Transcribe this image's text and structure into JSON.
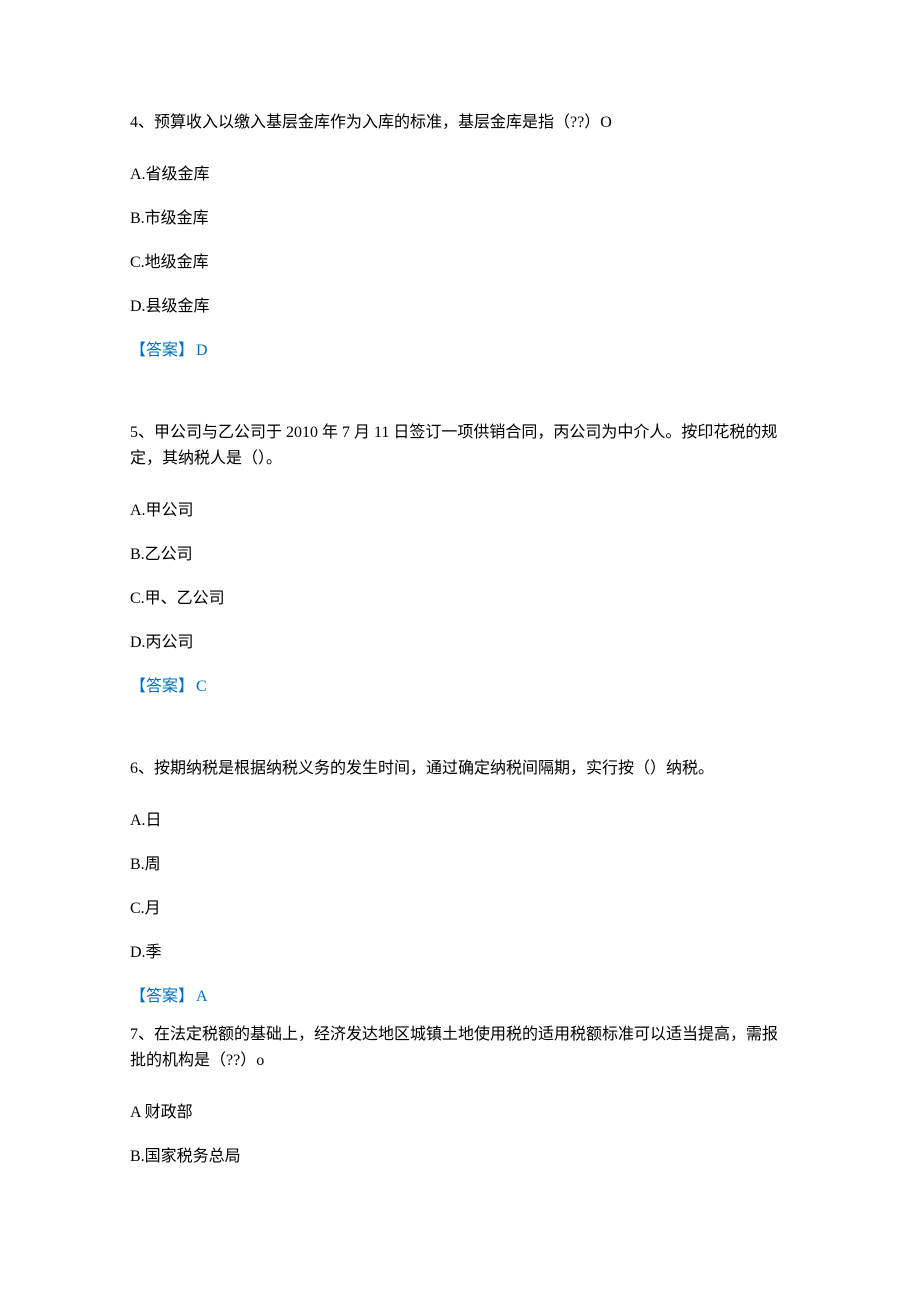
{
  "colors": {
    "text": "#000000",
    "answer": "#0070c0",
    "background": "#ffffff"
  },
  "typography": {
    "font_family": "SimSun",
    "font_size_pt": 12,
    "line_height": 26
  },
  "questions": [
    {
      "number": "4",
      "text": "4、预算收入以缴入基层金库作为入库的标准，基层金库是指（??）O",
      "options": [
        "A.省级金库",
        "B.市级金库",
        "C.地级金库",
        "D.县级金库"
      ],
      "answer_label": "【答案】",
      "answer_value": "D"
    },
    {
      "number": "5",
      "text": "5、甲公司与乙公司于 2010 年 7 月 11 日签订一项供销合同，丙公司为中介人。按印花税的规定，其纳税人是（）。",
      "options": [
        "A.甲公司",
        "B.乙公司",
        "C.甲、乙公司",
        "D.丙公司"
      ],
      "answer_label": "【答案】",
      "answer_value": "C"
    },
    {
      "number": "6",
      "text": "6、按期纳税是根据纳税义务的发生时间，通过确定纳税间隔期，实行按（）纳税。",
      "options": [
        "A.日",
        "B.周",
        "C.月",
        "D.季"
      ],
      "answer_label": "【答案】",
      "answer_value": "A"
    },
    {
      "number": "7",
      "text": "7、在法定税额的基础上，经济发达地区城镇土地使用税的适用税额标准可以适当提高，需报批的机构是（??）o",
      "options": [
        "A 财政部",
        "B.国家税务总局"
      ],
      "answer_label": "",
      "answer_value": ""
    }
  ]
}
